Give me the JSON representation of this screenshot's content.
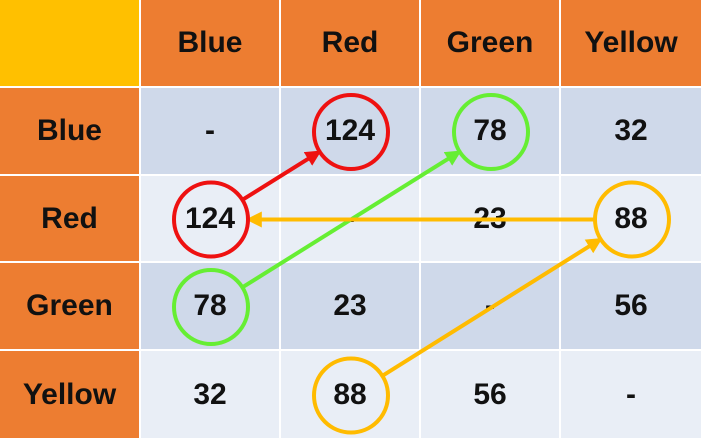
{
  "table": {
    "column_headers": [
      "Blue",
      "Red",
      "Green",
      "Yellow"
    ],
    "row_headers": [
      "Blue",
      "Red",
      "Green",
      "Yellow"
    ],
    "cells": [
      [
        "-",
        "124",
        "78",
        "32"
      ],
      [
        "124",
        "-",
        "23",
        "88"
      ],
      [
        "78",
        "23",
        "-",
        "56"
      ],
      [
        "32",
        "88",
        "56",
        "-"
      ]
    ]
  },
  "colors": {
    "corner": "#FFC000",
    "header": "#ED7D31",
    "row_dark": "#CFD9EA",
    "row_light": "#E9EEF6",
    "grid": "#FFFFFF",
    "red": "#EE1111",
    "green": "#66EE33",
    "yellow": "#FFBB00"
  },
  "highlights": [
    {
      "row": 1,
      "col": 0,
      "color": "red",
      "name": "red-circle-red-blue"
    },
    {
      "row": 0,
      "col": 1,
      "color": "red",
      "name": "red-circle-blue-red"
    },
    {
      "row": 2,
      "col": 0,
      "color": "green",
      "name": "green-circle-green-blue"
    },
    {
      "row": 0,
      "col": 2,
      "color": "green",
      "name": "green-circle-blue-green"
    },
    {
      "row": 3,
      "col": 1,
      "color": "yellow",
      "name": "yellow-circle-yellow-red"
    },
    {
      "row": 1,
      "col": 3,
      "color": "yellow",
      "name": "yellow-circle-red-yellow"
    }
  ],
  "arrows": [
    {
      "from": [
        1,
        0
      ],
      "to": [
        0,
        1
      ],
      "color": "red",
      "name": "red-arrow"
    },
    {
      "from": [
        2,
        0
      ],
      "to": [
        0,
        2
      ],
      "color": "green",
      "name": "green-arrow"
    },
    {
      "from": [
        3,
        1
      ],
      "to": [
        1,
        3
      ],
      "color": "yellow",
      "name": "yellow-arrow"
    },
    {
      "from": [
        1,
        3
      ],
      "to": [
        1,
        0
      ],
      "color": "yellow",
      "name": "yellow-horizontal-arrow"
    }
  ]
}
